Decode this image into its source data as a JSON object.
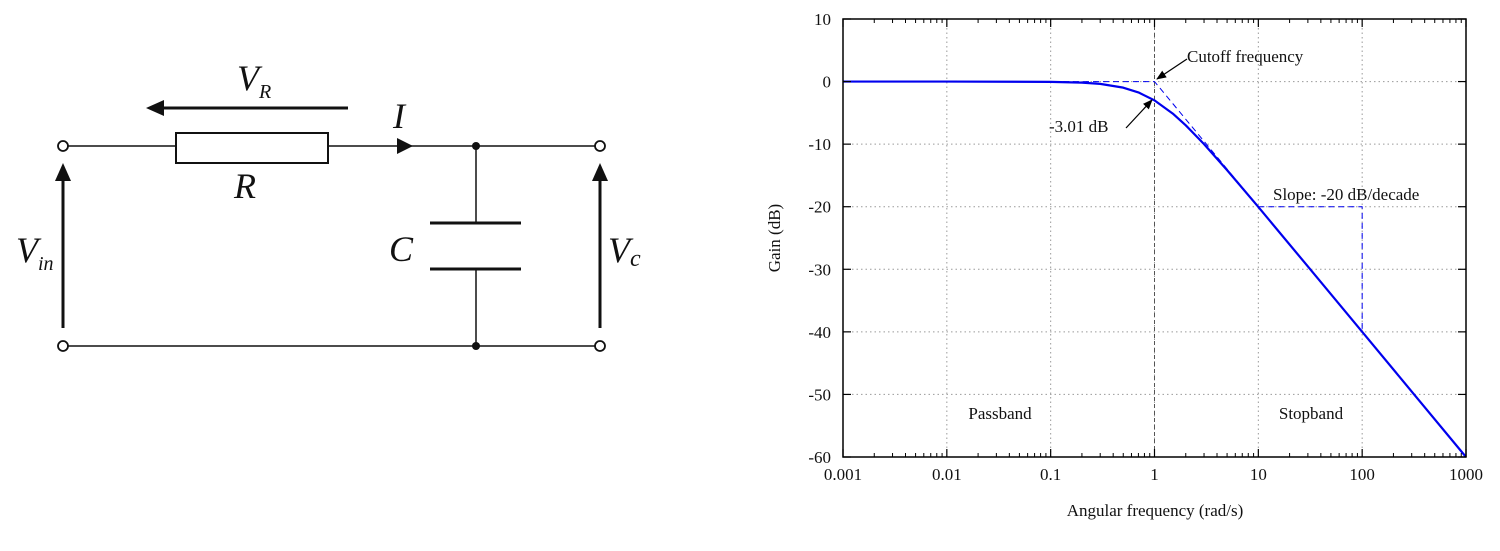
{
  "circuit": {
    "labels": {
      "vr_main": "V",
      "vr_sub": "R",
      "current": "I",
      "resistor": "R",
      "capacitor": "C",
      "vin_main": "V",
      "vin_sub": "in",
      "vc_main": "V",
      "vc_sub": "c"
    }
  },
  "chart_data": {
    "type": "line",
    "xlabel": "Angular frequency (rad/s)",
    "ylabel": "Gain (dB)",
    "xscale": "log",
    "xlim": [
      0.001,
      1000
    ],
    "ylim": [
      -60,
      10
    ],
    "grid": true,
    "x_ticks": [
      0.001,
      0.01,
      0.1,
      1,
      10,
      100,
      1000
    ],
    "x_tick_labels": [
      "0.001",
      "0.01",
      "0.1",
      "1",
      "10",
      "100",
      "1000"
    ],
    "y_ticks": [
      10,
      0,
      -10,
      -20,
      -30,
      -40,
      -50,
      -60
    ],
    "y_tick_labels": [
      "10",
      "0",
      "-10",
      "-20",
      "-30",
      "-40",
      "-50",
      "-60"
    ],
    "series": [
      {
        "color": "#0000ee",
        "x": [
          0.001,
          0.01,
          0.1,
          0.2,
          0.3,
          0.5,
          0.7,
          1,
          1.5,
          2,
          3,
          5,
          10,
          30,
          100,
          300,
          1000
        ],
        "y": [
          0,
          -0.0004,
          -0.043,
          -0.17,
          -0.37,
          -0.97,
          -1.73,
          -3.01,
          -5.12,
          -6.99,
          -10.0,
          -14.15,
          -20.04,
          -29.55,
          -40.0,
          -49.54,
          -60.0
        ]
      }
    ],
    "asymptote": {
      "color": "#0000ee",
      "x": [
        0.001,
        1,
        1000
      ],
      "y": [
        0,
        0,
        -60
      ]
    },
    "slope_triangle": {
      "x": [
        10,
        100,
        100
      ],
      "y": [
        -20,
        -20,
        -40
      ]
    },
    "cutoff_line_x": 1,
    "annotations": {
      "cutoff": "Cutoff frequency",
      "minus3db": "-3.01 dB",
      "slope": "Slope: -20 dB/decade",
      "passband": "Passband",
      "stopband": "Stopband"
    }
  }
}
